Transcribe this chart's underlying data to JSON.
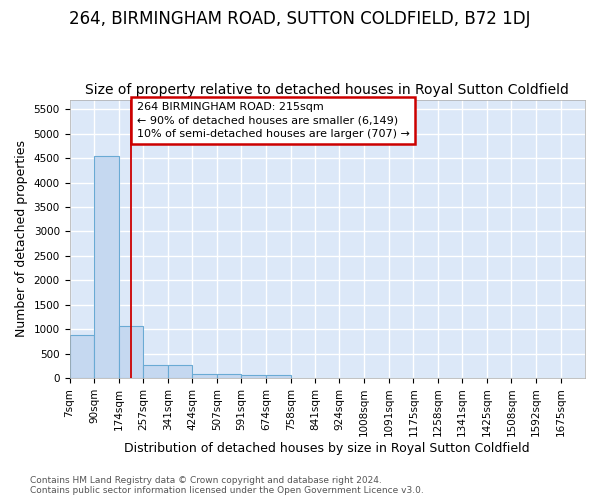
{
  "title": "264, BIRMINGHAM ROAD, SUTTON COLDFIELD, B72 1DJ",
  "subtitle": "Size of property relative to detached houses in Royal Sutton Coldfield",
  "xlabel": "Distribution of detached houses by size in Royal Sutton Coldfield",
  "ylabel": "Number of detached properties",
  "footer_line1": "Contains HM Land Registry data © Crown copyright and database right 2024.",
  "footer_line2": "Contains public sector information licensed under the Open Government Licence v3.0.",
  "bin_labels": [
    "7sqm",
    "90sqm",
    "174sqm",
    "257sqm",
    "341sqm",
    "424sqm",
    "507sqm",
    "591sqm",
    "674sqm",
    "758sqm",
    "841sqm",
    "924sqm",
    "1008sqm",
    "1091sqm",
    "1175sqm",
    "1258sqm",
    "1341sqm",
    "1425sqm",
    "1508sqm",
    "1592sqm",
    "1675sqm"
  ],
  "bar_heights": [
    870,
    4550,
    1060,
    270,
    265,
    90,
    85,
    70,
    60,
    0,
    0,
    0,
    0,
    0,
    0,
    0,
    0,
    0,
    0,
    0,
    0
  ],
  "bar_color": "#c5d8f0",
  "bar_edge_color": "#6aaad4",
  "background_color": "#dce8f8",
  "grid_color": "#ffffff",
  "fig_background": "#ffffff",
  "ylim_max": 5700,
  "yticks": [
    0,
    500,
    1000,
    1500,
    2000,
    2500,
    3000,
    3500,
    4000,
    4500,
    5000,
    5500
  ],
  "red_line_x": 215,
  "bin_edges": [
    7,
    90,
    174,
    257,
    341,
    424,
    507,
    591,
    674,
    758,
    841,
    924,
    1008,
    1091,
    1175,
    1258,
    1341,
    1425,
    1508,
    1592,
    1675,
    1758
  ],
  "annotation_title": "264 BIRMINGHAM ROAD: 215sqm",
  "annotation_line1": "← 90% of detached houses are smaller (6,149)",
  "annotation_line2": "10% of semi-detached houses are larger (707) →",
  "annotation_box_color": "#ffffff",
  "annotation_border_color": "#cc0000",
  "title_fontsize": 12,
  "subtitle_fontsize": 10,
  "ylabel_fontsize": 9,
  "xlabel_fontsize": 9,
  "tick_fontsize": 7.5,
  "footer_fontsize": 6.5,
  "annotation_fontsize": 8
}
